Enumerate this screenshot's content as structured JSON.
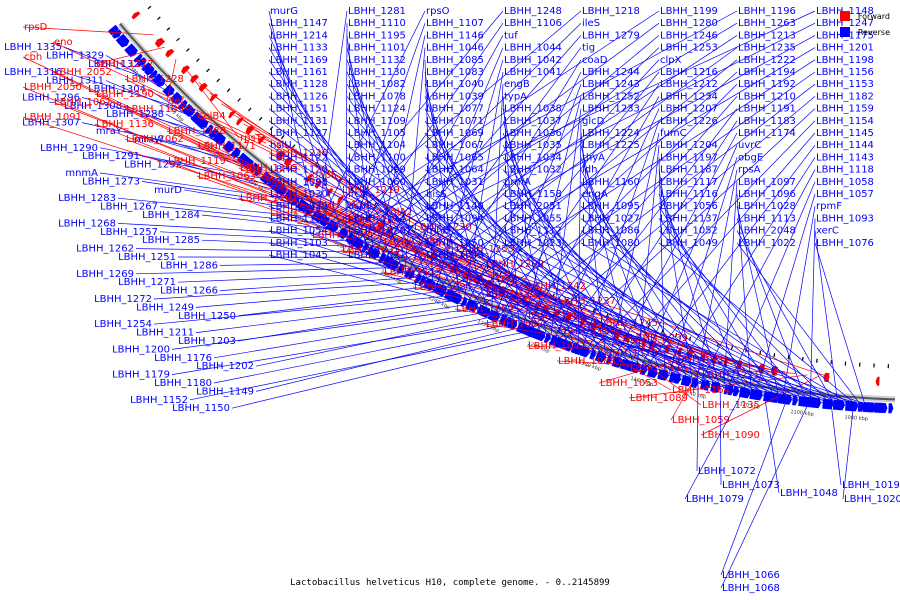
{
  "caption": "Lactobacillus helveticus H10, complete genome. - 0..2145899",
  "legend": [
    {
      "label": "Forward",
      "color": "#ff0000"
    },
    {
      "label": "Reverse",
      "color": "#0000ff"
    }
  ],
  "ruler": [
    "1380 kbp",
    "1360 kbp",
    "1340 kbp",
    "1320 kbp",
    "1300 kbp",
    "1280 kbp",
    "1260 kbp",
    "1240 kbp",
    "1220 kbp",
    "1200 kbp",
    "1180 kbp",
    "1160 kbp",
    "1140 kbp",
    "1120 kbp",
    "1100 kbp",
    "1080 kbp"
  ],
  "labels_forward": [
    "rpsD",
    "LBHH_1277",
    "def",
    "rpsT",
    "dapF",
    "bglA2",
    "LBHH_1255",
    "LBHH_1242",
    "LBHH_1245",
    "LBHH_1231",
    "eno",
    "LBHH_1228",
    "celB4",
    "LBHH_1236",
    "LBHH_1219",
    "LBHH_1230",
    "LBHH_1209",
    "LBHH_1237",
    "LBHH_1239",
    "LBHH_1221",
    "cbh",
    "LBHH_1190",
    "LBHH_1188",
    "LBHH_1165",
    "LBHH_1170",
    "LBHH_1155",
    "LBHH_1185",
    "LBHH_1186",
    "LBHH_1178",
    "LBHH_1164",
    "LBHH_2052",
    "LBHH_1189",
    "LBHH_1171",
    "LBHH_1181",
    "LBHH_1184",
    "LBHH_1138",
    "LBHH_1121",
    "LBHH_1134",
    "LBHH_1111",
    "LBHH_1135",
    "LBHH_2050",
    "LBHH_1136",
    "LBHH_1119",
    "LBHH_1102",
    "LBHH_1108",
    "LBHH_1115",
    "LBHH_1092",
    "LBHH_1047",
    "LBHH_1053",
    "LBHH_1059",
    "LBHH_1061",
    "LBHH_1062",
    "LBHH_1063",
    "LBHH_1025",
    "LBHH_1033",
    "LBHH_1084",
    "LBHH_1087",
    "LBHH_1088",
    "LBHH_1089",
    "LBHH_1090",
    "LBHH_1091"
  ],
  "labels_reverse_left": [
    "LBHH_1335",
    "LBHH_1329",
    "LBHH_1321",
    "LBHH_1316",
    "LBHH_1311",
    "LBHH_1304",
    "LBHH_1296",
    "LBHH_1308",
    "LBHH_1288",
    "LBHH_1307",
    "mraY",
    "mraW",
    "LBHH_1290",
    "LBHH_1291",
    "LBHH_1292",
    "mnmA",
    "LBHH_1273",
    "murD",
    "LBHH_1283",
    "LBHH_1267",
    "LBHH_1284",
    "LBHH_1268",
    "LBHH_1257",
    "LBHH_1285",
    "LBHH_1262",
    "LBHH_1251",
    "LBHH_1286",
    "LBHH_1269",
    "LBHH_1271",
    "LBHH_1266",
    "LBHH_1272",
    "LBHH_1249",
    "LBHH_1250",
    "LBHH_1254",
    "LBHH_1211",
    "LBHH_1203",
    "LBHH_1200",
    "LBHH_1176",
    "LBHH_1202",
    "LBHH_1179",
    "LBHH_1180",
    "LBHH_1149",
    "LBHH_1152",
    "LBHH_1150"
  ],
  "labels_reverse_top": [
    "murG",
    "LBHH_1281",
    "rpsO",
    "LBHH_1248",
    "LBHH_1218",
    "LBHH_1199",
    "LBHH_1196",
    "LBHH_1148",
    "LBHH_1147",
    "LBHH_1110",
    "LBHH_1107",
    "LBHH_1106",
    "ileS",
    "LBHH_1280",
    "LBHH_1263",
    "LBHH_1247",
    "LBHH_1214",
    "LBHH_1195",
    "LBHH_1146",
    "tuf",
    "LBHH_1279",
    "LBHH_1246",
    "LBHH_1213",
    "LBHH_1175",
    "LBHH_1133",
    "LBHH_1101",
    "LBHH_1046",
    "LBHH_1044",
    "tig",
    "LBHH_1253",
    "LBHH_1235",
    "LBHH_1201",
    "LBHH_1169",
    "LBHH_1132",
    "LBHH_1085",
    "LBHH_1042",
    "coaD",
    "clpX",
    "LBHH_1222",
    "LBHH_1198",
    "LBHH_1161",
    "LBHH_1130",
    "LBHH_1083",
    "LBHH_1041",
    "LBHH_1244",
    "LBHH_1216",
    "LBHH_1194",
    "LBHH_1156",
    "LBHH_1128",
    "LBHH_1082",
    "LBHH_1040",
    "engB",
    "LBHH_1243",
    "LBHH_1212",
    "LBHH_1192",
    "LBHH_1153",
    "LBHH_1126",
    "LBHH_1078",
    "LBHH_1039",
    "typA",
    "LBHH_1252",
    "LBHH_1234",
    "LBHH_1210",
    "LBHH_1182",
    "LBHH_1151",
    "LBHH_1124",
    "LBHH_1077",
    "LBHH_1038",
    "LBHH_1233",
    "LBHH_1207",
    "LBHH_1191",
    "LBHH_1159",
    "LBHH_1131",
    "LBHH_1109",
    "LBHH_1071",
    "LBHH_1037",
    "glcD",
    "LBHH_1226",
    "LBHH_1183",
    "LBHH_1154",
    "LBHH_1127",
    "LBHH_1105",
    "LBHH_1069",
    "LBHH_1036",
    "LBHH_1224",
    "fumC",
    "LBHH_1174",
    "LBHH_1145",
    "hslU",
    "LBHH_1104",
    "LBHH_1067",
    "LBHH_1035",
    "LBHH_1225",
    "LBHH_1204",
    "uvrC",
    "LBHH_1144",
    "LBHH_1122",
    "LBHH_1100",
    "LBHH_1065",
    "LBHH_1034",
    "thyA",
    "LBHH_1197",
    "obgE",
    "LBHH_1143",
    "LBHH_1120",
    "LBHH_1099",
    "LBHH_1064",
    "LBHH_1032",
    "ldh",
    "LBHH_1187",
    "rpsA",
    "LBHH_1118",
    "LBHH_1098",
    "LBHH_1060",
    "LBHH_1031",
    "prmA",
    "LBHH_1160",
    "LBHH_1117",
    "LBHH_1097",
    "LBHH_1058",
    "LBHH_1030",
    "irc4",
    "hisS",
    "LBHH_1158",
    "engA",
    "LBHH_1116",
    "LBHH_1096",
    "LBHH_1057",
    "LBHH_1029",
    "aspS",
    "LBHH_1140",
    "LBHH_2051",
    "LBHH_1095",
    "LBHH_1056",
    "LBHH_1028",
    "rpmF",
    "LBHH_1139",
    "LBHH_1114",
    "LBHH_1094",
    "LBHH_1055",
    "LBHH_1027",
    "LBHH_1137",
    "LBHH_1113",
    "LBHH_1093",
    "LBHH_1054",
    "LBHH_1026",
    "rnhB",
    "LBHH_1112",
    "LBHH_1086",
    "LBHH_1052",
    "LBHH_2048",
    "xerC",
    "LBHH_1103",
    "cotE",
    "LBHH_1050",
    "LBHH_1023",
    "LBHH_1080",
    "LBHH_1049",
    "LBHH_1022",
    "LBHH_1076",
    "LBHH_1045",
    "LBHH_1021",
    "LBHH_1043"
  ],
  "labels_reverse_bottom": [
    "LBHH_1072",
    "LBHH_1073",
    "LBHH_1079",
    "LBHH_1048",
    "LBHH_1066",
    "LBHH_1068",
    "LBHH_1019",
    "LBHH_1020"
  ]
}
